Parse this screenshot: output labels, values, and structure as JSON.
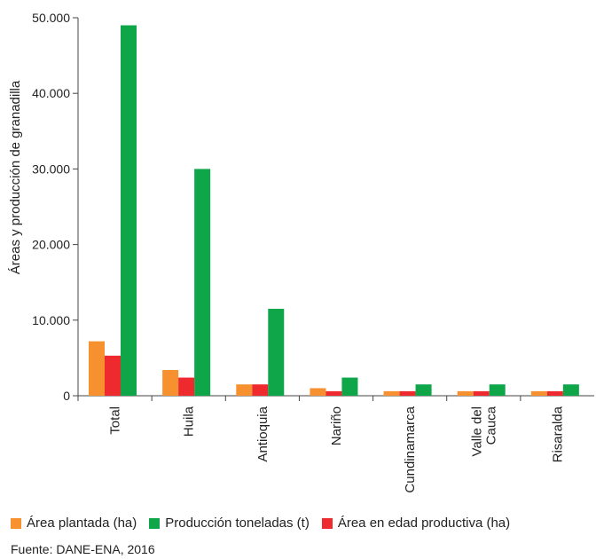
{
  "chart_data": {
    "type": "bar",
    "title": "",
    "xlabel": "",
    "ylabel": "Áreas y producción de granadilla",
    "ylim": [
      0,
      50000
    ],
    "yticks": [
      0,
      10000,
      20000,
      30000,
      40000,
      50000
    ],
    "ytick_labels": [
      "0",
      "10.000",
      "20.000",
      "30.000",
      "40.000",
      "50.000"
    ],
    "categories": [
      "Total",
      "Huila",
      "Antioquia",
      "Nariño",
      "Cundinamarca",
      "Valle del Cauca",
      "Risaralda"
    ],
    "category_label_lines": [
      [
        "Total"
      ],
      [
        "Huila"
      ],
      [
        "Antioquia"
      ],
      [
        "Nariño"
      ],
      [
        "Cundinamarca"
      ],
      [
        "Valle del",
        "Cauca"
      ],
      [
        "Risaralda"
      ]
    ],
    "series": [
      {
        "name": "Área plantada (ha)",
        "color": "#f7902f",
        "values": [
          7200,
          3400,
          1500,
          1000,
          600,
          600,
          600
        ]
      },
      {
        "name": "Producción toneladas (t)",
        "color": "#0fa64a",
        "values": [
          49000,
          30000,
          11500,
          2400,
          1500,
          1500,
          1500
        ]
      },
      {
        "name": "Área en edad productiva (ha)",
        "color": "#ee2a2e",
        "values": [
          5300,
          2400,
          1500,
          600,
          600,
          600,
          600
        ]
      }
    ],
    "bar_order": [
      0,
      2,
      1
    ],
    "grid": false,
    "legend_position": "bottom"
  },
  "source": "Fuente: DANE-ENA, 2016"
}
